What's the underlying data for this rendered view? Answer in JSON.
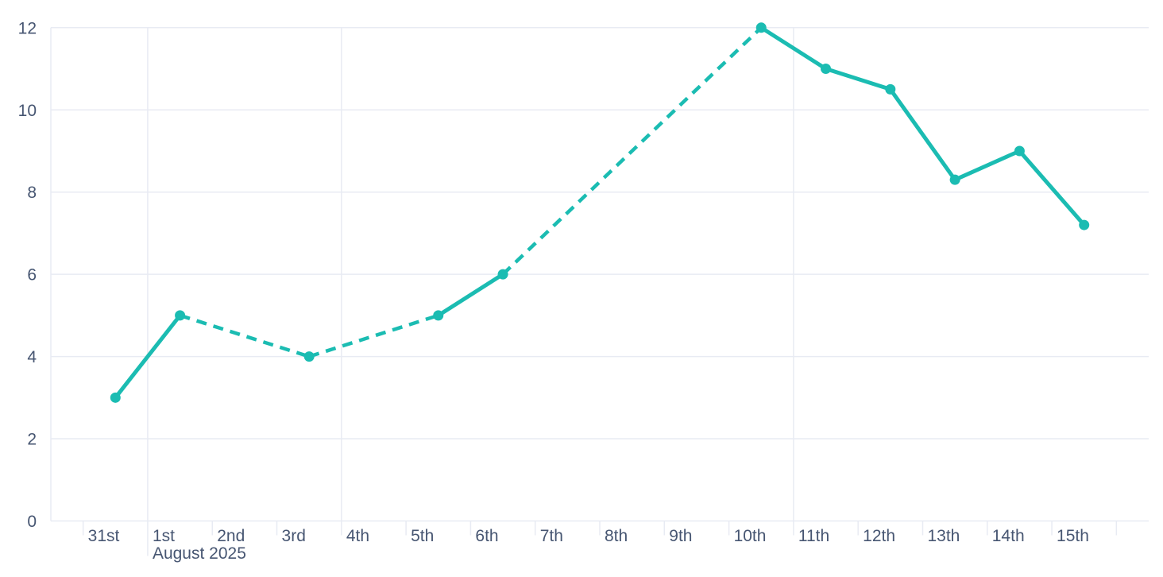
{
  "chart_data": {
    "type": "line",
    "title": "",
    "xlabel": "",
    "ylabel": "",
    "legend": false,
    "grid": true,
    "x_axis": {
      "tick_labels": [
        "31st",
        "1st",
        "2nd",
        "3rd",
        "4th",
        "5th",
        "6th",
        "7th",
        "8th",
        "9th",
        "10th",
        "11th",
        "12th",
        "13th",
        "14th",
        "15th"
      ],
      "month_label": "August 2025",
      "month_label_index": 1,
      "unlabeled_trailing_slots": 1,
      "emphasized_gridline_indices": [
        1,
        4,
        11
      ]
    },
    "y_axis": {
      "ticks": [
        0,
        2,
        4,
        6,
        8,
        10,
        12
      ],
      "ylim": [
        0,
        12
      ]
    },
    "series": [
      {
        "name": "daily-values",
        "values": [
          3,
          5,
          null,
          4,
          null,
          5,
          6,
          null,
          null,
          null,
          12,
          11,
          10.5,
          8.3,
          9,
          7.2
        ],
        "gap_style": "dashed",
        "marker": "circle"
      }
    ]
  },
  "colors": {
    "line": "#1BBCB2",
    "grid": "#E8EBF3",
    "label": "#475672",
    "background": "#FFFFFF"
  }
}
